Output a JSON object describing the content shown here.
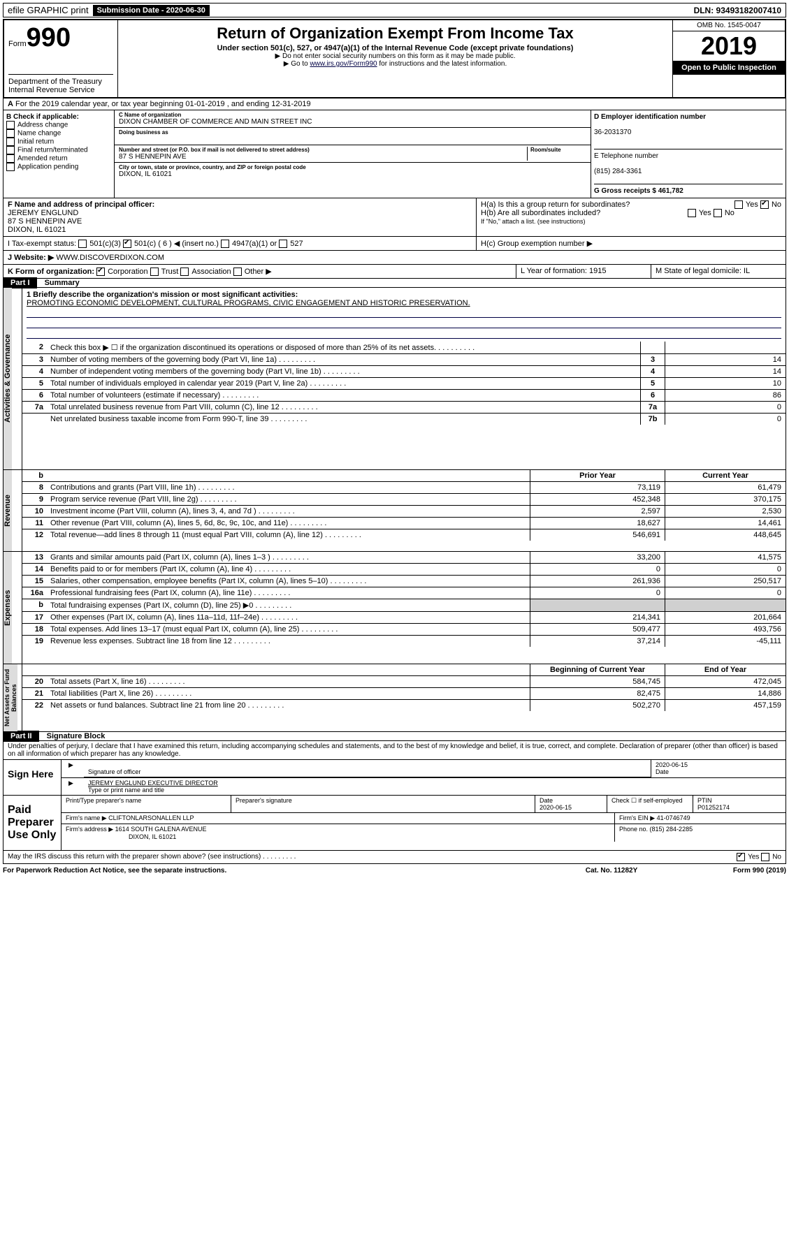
{
  "topbar": {
    "efile": "efile GRAPHIC print",
    "submission_label": "Submission Date - 2020-06-30",
    "dln": "DLN: 93493182007410"
  },
  "header": {
    "form_word": "Form",
    "form_num": "990",
    "title": "Return of Organization Exempt From Income Tax",
    "subtitle": "Under section 501(c), 527, or 4947(a)(1) of the Internal Revenue Code (except private foundations)",
    "note1": "▶ Do not enter social security numbers on this form as it may be made public.",
    "note2_a": "▶ Go to ",
    "note2_link": "www.irs.gov/Form990",
    "note2_b": " for instructions and the latest information.",
    "omb": "OMB No. 1545-0047",
    "year": "2019",
    "open": "Open to Public Inspection",
    "dept": "Department of the Treasury Internal Revenue Service"
  },
  "lineA": "For the 2019 calendar year, or tax year beginning 01-01-2019    , and ending 12-31-2019",
  "sectionB": {
    "label": "B Check if applicable:",
    "opts": [
      "Address change",
      "Name change",
      "Initial return",
      "Final return/terminated",
      "Amended return",
      "Application pending"
    ]
  },
  "sectionC": {
    "name_label": "C Name of organization",
    "name": "DIXON CHAMBER OF COMMERCE AND MAIN STREET INC",
    "dba_label": "Doing business as",
    "addr_label": "Number and street (or P.O. box if mail is not delivered to street address)",
    "room_label": "Room/suite",
    "addr": "87 S HENNEPIN AVE",
    "city_label": "City or town, state or province, country, and ZIP or foreign postal code",
    "city": "DIXON, IL  61021"
  },
  "sectionD": {
    "label": "D Employer identification number",
    "ein": "36-2031370",
    "tel_label": "E Telephone number",
    "tel": "(815) 284-3361",
    "gross_label": "G Gross receipts $ 461,782"
  },
  "sectionF": {
    "label": "F Name and address of principal officer:",
    "name": "JEREMY ENGLUND",
    "addr1": "87 S HENNEPIN AVE",
    "addr2": "DIXON, IL  61021"
  },
  "sectionH": {
    "ha": "H(a)  Is this a group return for subordinates?",
    "hb": "H(b)  Are all subordinates included?",
    "hnote": "If \"No,\" attach a list. (see instructions)",
    "hc": "H(c)  Group exemption number ▶",
    "yes": "Yes",
    "no": "No"
  },
  "sectionI": {
    "label": "I   Tax-exempt status:",
    "o1": "501(c)(3)",
    "o2": "501(c) ( 6 ) ◀ (insert no.)",
    "o3": "4947(a)(1) or",
    "o4": "527"
  },
  "sectionJ": {
    "label": "J   Website: ▶",
    "val": "WWW.DISCOVERDIXON.COM"
  },
  "sectionK": {
    "label": "K Form of organization:",
    "o1": "Corporation",
    "o2": "Trust",
    "o3": "Association",
    "o4": "Other ▶"
  },
  "sectionL": {
    "label": "L Year of formation: 1915"
  },
  "sectionM": {
    "label": "M State of legal domicile: IL"
  },
  "part1": {
    "label": "Part I",
    "title": "Summary"
  },
  "mission_label": "1  Briefly describe the organization's mission or most significant activities:",
  "mission": "PROMOTING ECONOMIC DEVELOPMENT, CULTURAL PROGRAMS, CIVIC ENGAGEMENT AND HISTORIC PRESERVATION.",
  "gov_lines": [
    {
      "n": "2",
      "t": "Check this box ▶ ☐  if the organization discontinued its operations or disposed of more than 25% of its net assets.",
      "box": "",
      "val": ""
    },
    {
      "n": "3",
      "t": "Number of voting members of the governing body (Part VI, line 1a)",
      "box": "3",
      "val": "14"
    },
    {
      "n": "4",
      "t": "Number of independent voting members of the governing body (Part VI, line 1b)",
      "box": "4",
      "val": "14"
    },
    {
      "n": "5",
      "t": "Total number of individuals employed in calendar year 2019 (Part V, line 2a)",
      "box": "5",
      "val": "10"
    },
    {
      "n": "6",
      "t": "Total number of volunteers (estimate if necessary)",
      "box": "6",
      "val": "86"
    },
    {
      "n": "7a",
      "t": "Total unrelated business revenue from Part VIII, column (C), line 12",
      "box": "7a",
      "val": "0"
    },
    {
      "n": "",
      "t": "Net unrelated business taxable income from Form 990-T, line 39",
      "box": "7b",
      "val": "0"
    }
  ],
  "col_headers": {
    "prior": "Prior Year",
    "current": "Current Year",
    "begin": "Beginning of Current Year",
    "end": "End of Year"
  },
  "rev_lines": [
    {
      "n": "8",
      "t": "Contributions and grants (Part VIII, line 1h)",
      "p": "73,119",
      "c": "61,479"
    },
    {
      "n": "9",
      "t": "Program service revenue (Part VIII, line 2g)",
      "p": "452,348",
      "c": "370,175"
    },
    {
      "n": "10",
      "t": "Investment income (Part VIII, column (A), lines 3, 4, and 7d )",
      "p": "2,597",
      "c": "2,530"
    },
    {
      "n": "11",
      "t": "Other revenue (Part VIII, column (A), lines 5, 6d, 8c, 9c, 10c, and 11e)",
      "p": "18,627",
      "c": "14,461"
    },
    {
      "n": "12",
      "t": "Total revenue—add lines 8 through 11 (must equal Part VIII, column (A), line 12)",
      "p": "546,691",
      "c": "448,645"
    }
  ],
  "exp_lines": [
    {
      "n": "13",
      "t": "Grants and similar amounts paid (Part IX, column (A), lines 1–3 )",
      "p": "33,200",
      "c": "41,575"
    },
    {
      "n": "14",
      "t": "Benefits paid to or for members (Part IX, column (A), line 4)",
      "p": "0",
      "c": "0"
    },
    {
      "n": "15",
      "t": "Salaries, other compensation, employee benefits (Part IX, column (A), lines 5–10)",
      "p": "261,936",
      "c": "250,517"
    },
    {
      "n": "16a",
      "t": "Professional fundraising fees (Part IX, column (A), line 11e)",
      "p": "0",
      "c": "0"
    },
    {
      "n": "b",
      "t": "Total fundraising expenses (Part IX, column (D), line 25) ▶0",
      "p": "",
      "c": "",
      "grey": true
    },
    {
      "n": "17",
      "t": "Other expenses (Part IX, column (A), lines 11a–11d, 11f–24e)",
      "p": "214,341",
      "c": "201,664"
    },
    {
      "n": "18",
      "t": "Total expenses. Add lines 13–17 (must equal Part IX, column (A), line 25)",
      "p": "509,477",
      "c": "493,756"
    },
    {
      "n": "19",
      "t": "Revenue less expenses. Subtract line 18 from line 12",
      "p": "37,214",
      "c": "-45,111"
    }
  ],
  "net_lines": [
    {
      "n": "20",
      "t": "Total assets (Part X, line 16)",
      "p": "584,745",
      "c": "472,045"
    },
    {
      "n": "21",
      "t": "Total liabilities (Part X, line 26)",
      "p": "82,475",
      "c": "14,886"
    },
    {
      "n": "22",
      "t": "Net assets or fund balances. Subtract line 21 from line 20",
      "p": "502,270",
      "c": "457,159"
    }
  ],
  "vlabels": {
    "gov": "Activities & Governance",
    "rev": "Revenue",
    "exp": "Expenses",
    "net": "Net Assets or Fund Balances"
  },
  "part2": {
    "label": "Part II",
    "title": "Signature Block"
  },
  "perjury": "Under penalties of perjury, I declare that I have examined this return, including accompanying schedules and statements, and to the best of my knowledge and belief, it is true, correct, and complete. Declaration of preparer (other than officer) is based on all information of which preparer has any knowledge.",
  "sign": {
    "here": "Sign Here",
    "sig_label": "Signature of officer",
    "date1": "2020-06-15",
    "date_label": "Date",
    "name": "JEREMY ENGLUND  EXECUTIVE DIRECTOR",
    "name_label": "Type or print name and title"
  },
  "paid": {
    "title": "Paid Preparer Use Only",
    "h1": "Print/Type preparer's name",
    "h2": "Preparer's signature",
    "h3": "Date",
    "h4": "Check ☐ if self-employed",
    "h5": "PTIN",
    "date": "2020-06-15",
    "ptin": "P01252174",
    "firm_label": "Firm's name   ▶",
    "firm": "CLIFTONLARSONALLEN LLP",
    "ein_label": "Firm's EIN ▶ 41-0746749",
    "addr_label": "Firm's address ▶",
    "addr": "1614 SOUTH GALENA AVENUE",
    "city": "DIXON, IL  61021",
    "phone": "Phone no. (815) 284-2285"
  },
  "discuss": "May the IRS discuss this return with the preparer shown above? (see instructions)",
  "footer": {
    "left": "For Paperwork Reduction Act Notice, see the separate instructions.",
    "mid": "Cat. No. 11282Y",
    "right": "Form 990 (2019)"
  }
}
